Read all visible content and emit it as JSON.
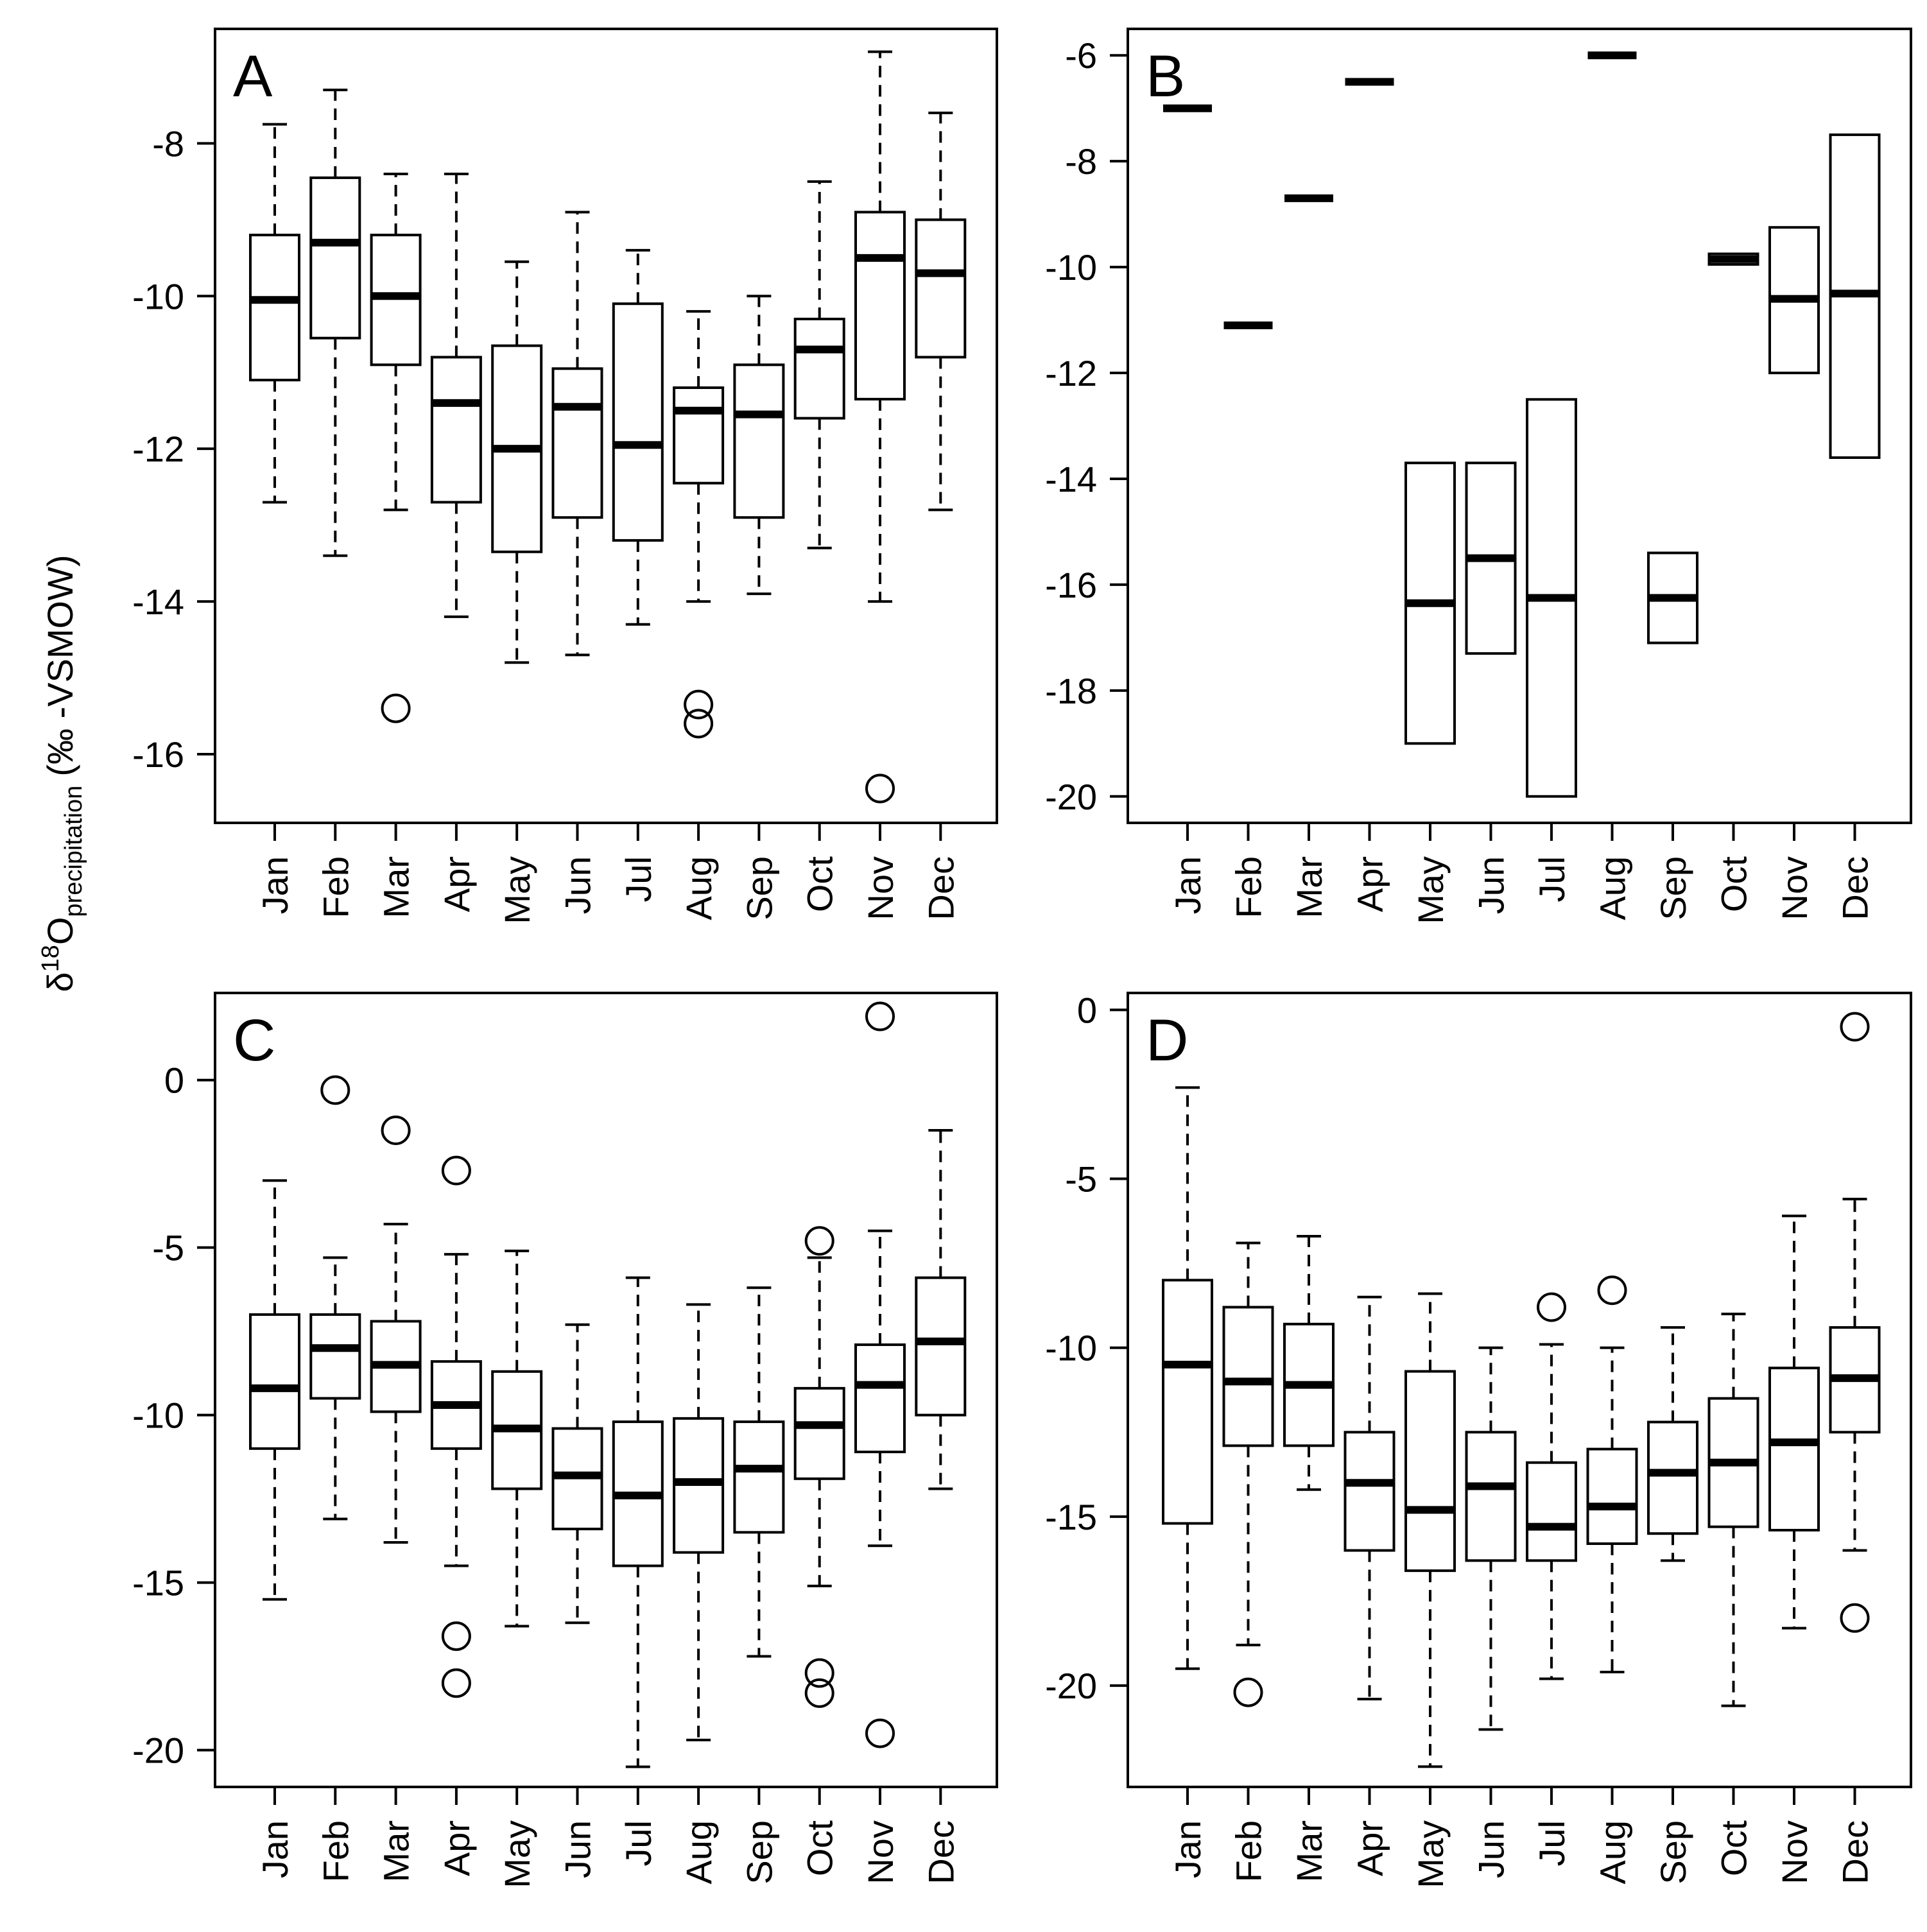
{
  "figure": {
    "ylabel": {
      "delta": "δ",
      "superscript": "18",
      "element": "O",
      "subscript": "precipitation",
      "units": "(‰ -VSMOW)"
    }
  },
  "chart_data": [
    {
      "panel": "A",
      "type": "boxplot",
      "title": "",
      "xlabel": "",
      "ylabel": "δ18O precipitation (‰ -VSMOW)",
      "ylim": [
        -16.9,
        -6.5
      ],
      "yticks": [
        -16,
        -14,
        -12,
        -10,
        -8
      ],
      "categories": [
        "Jan",
        "Feb",
        "Mar",
        "Apr",
        "May",
        "Jun",
        "Jul",
        "Aug",
        "Sep",
        "Oct",
        "Nov",
        "Dec"
      ],
      "boxes": [
        {
          "month": "Jan",
          "min": -12.7,
          "q1": -11.1,
          "median": -10.05,
          "q3": -9.2,
          "max": -7.75,
          "outliers": []
        },
        {
          "month": "Feb",
          "min": -13.4,
          "q1": -10.55,
          "median": -9.3,
          "q3": -8.45,
          "max": -7.3,
          "outliers": []
        },
        {
          "month": "Mar",
          "min": -12.8,
          "q1": -10.9,
          "median": -10.0,
          "q3": -9.2,
          "max": -8.4,
          "outliers": [
            -15.4
          ]
        },
        {
          "month": "Apr",
          "min": -14.2,
          "q1": -12.7,
          "median": -11.4,
          "q3": -10.8,
          "max": -8.4,
          "outliers": []
        },
        {
          "month": "May",
          "min": -14.8,
          "q1": -13.35,
          "median": -12.0,
          "q3": -10.65,
          "max": -9.55,
          "outliers": []
        },
        {
          "month": "Jun",
          "min": -14.7,
          "q1": -12.9,
          "median": -11.45,
          "q3": -10.95,
          "max": -8.9,
          "outliers": []
        },
        {
          "month": "Jul",
          "min": -14.3,
          "q1": -13.2,
          "median": -11.95,
          "q3": -10.1,
          "max": -9.4,
          "outliers": []
        },
        {
          "month": "Aug",
          "min": -14.0,
          "q1": -12.45,
          "median": -11.5,
          "q3": -11.2,
          "max": -10.2,
          "outliers": [
            -15.35,
            -15.6
          ]
        },
        {
          "month": "Sep",
          "min": -13.9,
          "q1": -12.9,
          "median": -11.55,
          "q3": -10.9,
          "max": -10.0,
          "outliers": []
        },
        {
          "month": "Oct",
          "min": -13.3,
          "q1": -11.6,
          "median": -10.7,
          "q3": -10.3,
          "max": -8.5,
          "outliers": []
        },
        {
          "month": "Nov",
          "min": -14.0,
          "q1": -11.35,
          "median": -9.5,
          "q3": -8.9,
          "max": -6.8,
          "outliers": [
            -16.45
          ]
        },
        {
          "month": "Dec",
          "min": -12.8,
          "q1": -10.8,
          "median": -9.7,
          "q3": -9.0,
          "max": -7.6,
          "outliers": []
        }
      ]
    },
    {
      "panel": "B",
      "type": "boxplot",
      "title": "",
      "xlabel": "",
      "ylabel": "",
      "ylim": [
        -20.5,
        -5.5
      ],
      "yticks": [
        -20,
        -18,
        -16,
        -14,
        -12,
        -10,
        -8,
        -6
      ],
      "categories": [
        "Jan",
        "Feb",
        "Mar",
        "Apr",
        "May",
        "Jun",
        "Jul",
        "Aug",
        "Sep",
        "Oct",
        "Nov",
        "Dec"
      ],
      "boxes": [
        {
          "month": "Jan",
          "min": -7.0,
          "q1": -7.0,
          "median": -7.0,
          "q3": -7.0,
          "max": -7.0,
          "outliers": []
        },
        {
          "month": "Feb",
          "min": -11.1,
          "q1": -11.1,
          "median": -11.1,
          "q3": -11.1,
          "max": -11.1,
          "outliers": []
        },
        {
          "month": "Mar",
          "min": -8.7,
          "q1": -8.7,
          "median": -8.7,
          "q3": -8.7,
          "max": -8.7,
          "outliers": []
        },
        {
          "month": "Apr",
          "min": -6.5,
          "q1": -6.5,
          "median": -6.5,
          "q3": -6.5,
          "max": -6.5,
          "outliers": []
        },
        {
          "month": "May",
          "min": -19.0,
          "q1": -19.0,
          "median": -16.35,
          "q3": -13.7,
          "max": -13.7,
          "outliers": []
        },
        {
          "month": "Jun",
          "min": -17.3,
          "q1": -17.3,
          "median": -15.5,
          "q3": -13.7,
          "max": -13.7,
          "outliers": []
        },
        {
          "month": "Jul",
          "min": -20.0,
          "q1": -20.0,
          "median": -16.25,
          "q3": -12.5,
          "max": -12.5,
          "outliers": []
        },
        {
          "month": "Aug",
          "min": -6.0,
          "q1": -6.0,
          "median": -6.0,
          "q3": -6.0,
          "max": -6.0,
          "outliers": []
        },
        {
          "month": "Sep",
          "min": -17.1,
          "q1": -17.1,
          "median": -16.25,
          "q3": -15.4,
          "max": -15.4,
          "outliers": []
        },
        {
          "month": "Oct",
          "min": -9.95,
          "q1": -9.95,
          "median": -9.85,
          "q3": -9.75,
          "max": -9.75,
          "outliers": []
        },
        {
          "month": "Nov",
          "min": -12.0,
          "q1": -12.0,
          "median": -10.6,
          "q3": -9.25,
          "max": -9.25,
          "outliers": []
        },
        {
          "month": "Dec",
          "min": -13.6,
          "q1": -13.6,
          "median": -10.5,
          "q3": -7.5,
          "max": -7.5,
          "outliers": []
        }
      ]
    },
    {
      "panel": "C",
      "type": "boxplot",
      "title": "",
      "xlabel": "",
      "ylabel": "",
      "ylim": [
        -21.1,
        2.6
      ],
      "yticks": [
        -20,
        -15,
        -10,
        -5,
        0
      ],
      "categories": [
        "Jan",
        "Feb",
        "Mar",
        "Apr",
        "May",
        "Jun",
        "Jul",
        "Aug",
        "Sep",
        "Oct",
        "Nov",
        "Dec"
      ],
      "boxes": [
        {
          "month": "Jan",
          "min": -15.5,
          "q1": -11.0,
          "median": -9.2,
          "q3": -7.0,
          "max": -3.0,
          "outliers": []
        },
        {
          "month": "Feb",
          "min": -13.1,
          "q1": -9.5,
          "median": -8.0,
          "q3": -7.0,
          "max": -5.3,
          "outliers": [
            -0.3
          ]
        },
        {
          "month": "Mar",
          "min": -13.8,
          "q1": -9.9,
          "median": -8.5,
          "q3": -7.2,
          "max": -4.3,
          "outliers": [
            -1.5
          ]
        },
        {
          "month": "Apr",
          "min": -14.5,
          "q1": -11.0,
          "median": -9.7,
          "q3": -8.4,
          "max": -5.2,
          "outliers": [
            -2.7,
            -16.6,
            -18.0
          ]
        },
        {
          "month": "May",
          "min": -16.3,
          "q1": -12.2,
          "median": -10.4,
          "q3": -8.7,
          "max": -5.1,
          "outliers": []
        },
        {
          "month": "Jun",
          "min": -16.2,
          "q1": -13.4,
          "median": -11.8,
          "q3": -10.4,
          "max": -7.3,
          "outliers": []
        },
        {
          "month": "Jul",
          "min": -20.5,
          "q1": -14.5,
          "median": -12.4,
          "q3": -10.2,
          "max": -5.9,
          "outliers": []
        },
        {
          "month": "Aug",
          "min": -19.7,
          "q1": -14.1,
          "median": -12.0,
          "q3": -10.1,
          "max": -6.7,
          "outliers": []
        },
        {
          "month": "Sep",
          "min": -17.2,
          "q1": -13.5,
          "median": -11.6,
          "q3": -10.2,
          "max": -6.2,
          "outliers": []
        },
        {
          "month": "Oct",
          "min": -15.1,
          "q1": -11.9,
          "median": -10.3,
          "q3": -9.2,
          "max": -5.3,
          "outliers": [
            -4.8,
            -17.7,
            -18.3
          ]
        },
        {
          "month": "Nov",
          "min": -13.9,
          "q1": -11.1,
          "median": -9.1,
          "q3": -7.9,
          "max": -4.5,
          "outliers": [
            1.9,
            -19.5
          ]
        },
        {
          "month": "Dec",
          "min": -12.2,
          "q1": -10.0,
          "median": -7.8,
          "q3": -5.9,
          "max": -1.5,
          "outliers": []
        }
      ]
    },
    {
      "panel": "D",
      "type": "boxplot",
      "title": "",
      "xlabel": "",
      "ylabel": "",
      "ylim": [
        -23.0,
        0.5
      ],
      "yticks": [
        -20,
        -15,
        -10,
        -5,
        0
      ],
      "categories": [
        "Jan",
        "Feb",
        "Mar",
        "Apr",
        "May",
        "Jun",
        "Jul",
        "Aug",
        "Sep",
        "Oct",
        "Nov",
        "Dec"
      ],
      "boxes": [
        {
          "month": "Jan",
          "min": -19.5,
          "q1": -15.2,
          "median": -10.5,
          "q3": -8.0,
          "max": -2.3,
          "outliers": []
        },
        {
          "month": "Feb",
          "min": -18.8,
          "q1": -12.9,
          "median": -11.0,
          "q3": -8.8,
          "max": -6.9,
          "outliers": [
            -20.2
          ]
        },
        {
          "month": "Mar",
          "min": -14.2,
          "q1": -12.9,
          "median": -11.1,
          "q3": -9.3,
          "max": -6.7,
          "outliers": []
        },
        {
          "month": "Apr",
          "min": -20.4,
          "q1": -16.0,
          "median": -14.0,
          "q3": -12.5,
          "max": -8.5,
          "outliers": []
        },
        {
          "month": "May",
          "min": -22.4,
          "q1": -16.6,
          "median": -14.8,
          "q3": -10.7,
          "max": -8.4,
          "outliers": []
        },
        {
          "month": "Jun",
          "min": -21.3,
          "q1": -16.3,
          "median": -14.1,
          "q3": -12.5,
          "max": -10.0,
          "outliers": []
        },
        {
          "month": "Jul",
          "min": -19.8,
          "q1": -16.3,
          "median": -15.3,
          "q3": -13.4,
          "max": -9.9,
          "outliers": [
            -8.8
          ]
        },
        {
          "month": "Aug",
          "min": -19.6,
          "q1": -15.8,
          "median": -14.7,
          "q3": -13.0,
          "max": -10.0,
          "outliers": [
            -8.3
          ]
        },
        {
          "month": "Sep",
          "min": -16.3,
          "q1": -15.5,
          "median": -13.7,
          "q3": -12.2,
          "max": -9.4,
          "outliers": []
        },
        {
          "month": "Oct",
          "min": -20.6,
          "q1": -15.3,
          "median": -13.4,
          "q3": -11.5,
          "max": -9.0,
          "outliers": []
        },
        {
          "month": "Nov",
          "min": -18.3,
          "q1": -15.4,
          "median": -12.8,
          "q3": -10.6,
          "max": -6.1,
          "outliers": []
        },
        {
          "month": "Dec",
          "min": -16.0,
          "q1": -12.5,
          "median": -10.9,
          "q3": -9.4,
          "max": -5.6,
          "outliers": [
            -0.5,
            -18.0
          ]
        }
      ]
    }
  ]
}
